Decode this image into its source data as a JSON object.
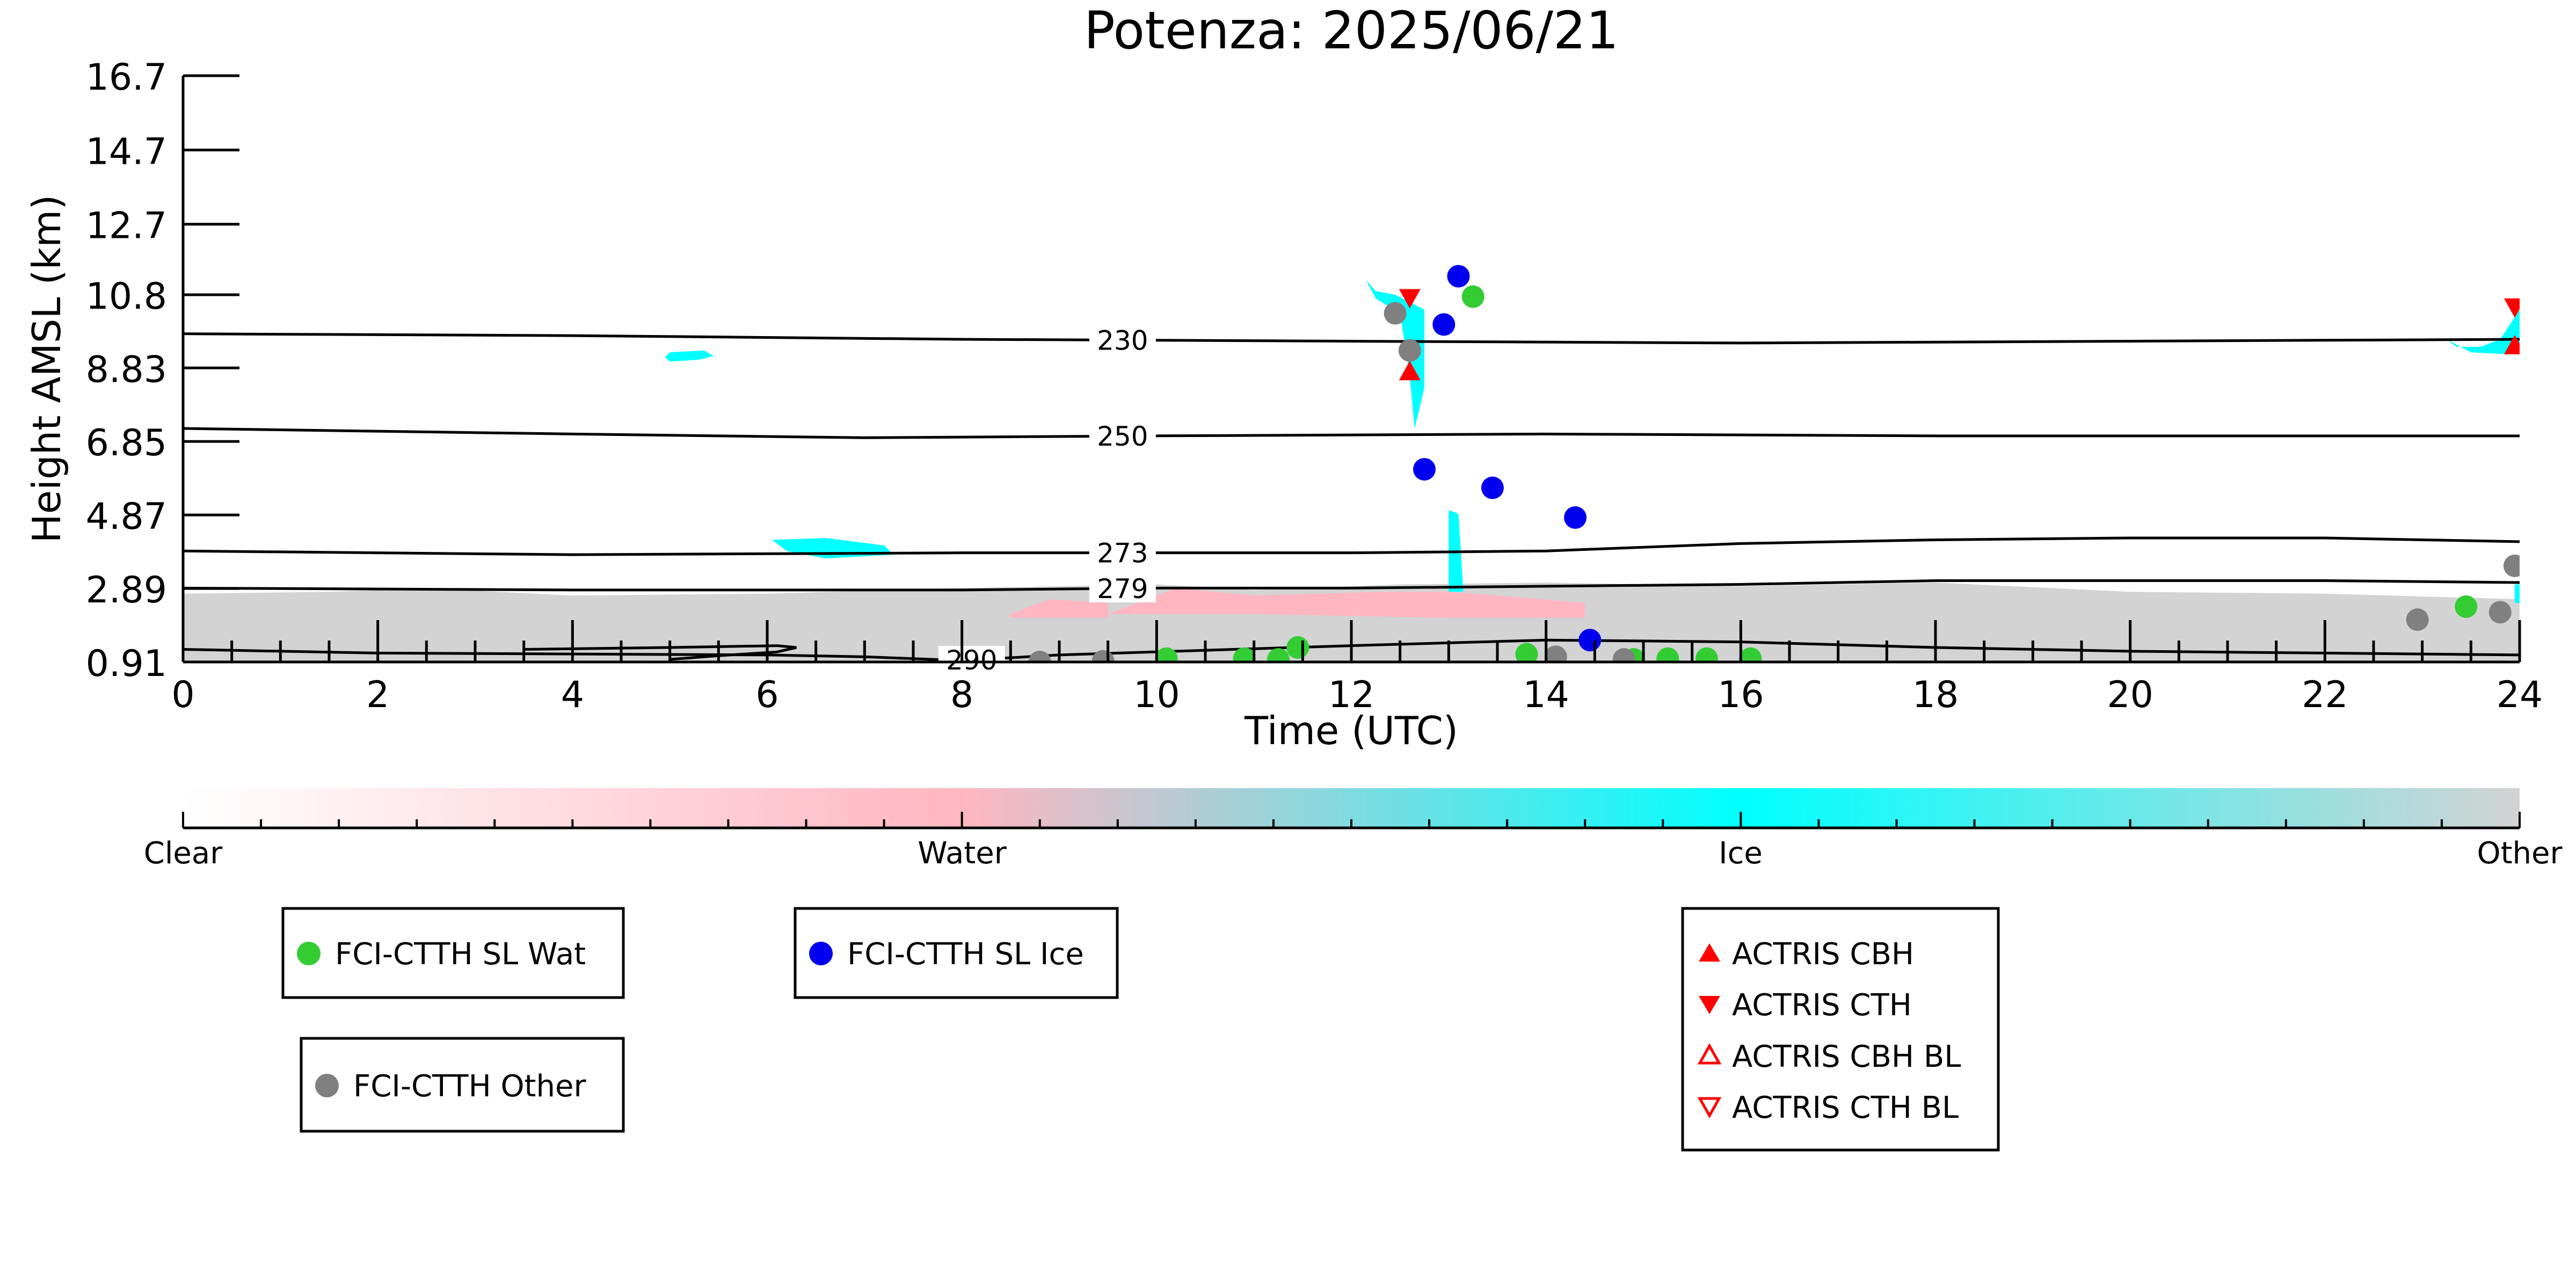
{
  "chart_data": {
    "type": "scatter",
    "title": "Potenza: 2025/06/21",
    "xlabel": "Time (UTC)",
    "ylabel": "Height AMSL (km)",
    "xlim": [
      0,
      24
    ],
    "ylim": [
      0.91,
      16.7
    ],
    "x_ticks": [
      0,
      2,
      4,
      6,
      8,
      10,
      12,
      14,
      16,
      18,
      20,
      22,
      24
    ],
    "x_tick_labels": [
      "0",
      "2",
      "4",
      "6",
      "8",
      "10",
      "12",
      "14",
      "16",
      "18",
      "20",
      "22",
      "24"
    ],
    "y_ticks": [
      0.91,
      2.89,
      4.87,
      6.85,
      8.83,
      10.8,
      12.7,
      14.7,
      16.7
    ],
    "y_tick_labels": [
      "0.91",
      "2.89",
      "4.87",
      "6.85",
      "8.83",
      "10.8",
      "12.7",
      "14.7",
      "16.7"
    ],
    "grid": false,
    "colors": {
      "clear": "#ffffff",
      "water": "#ffb6c1",
      "ice": "#00ffff",
      "other": "#d3d3d3",
      "wat_marker": "#33cc33",
      "ice_marker": "#0000ee",
      "other_marker": "#808080",
      "actris": "#ff0000",
      "contour": "#000000"
    },
    "colorbar": {
      "labels": [
        "Clear",
        "Water",
        "Ice",
        "Other"
      ]
    },
    "temperature_contours": [
      {
        "label": "230",
        "label_x": 9.65,
        "points": [
          [
            0,
            9.75
          ],
          [
            4,
            9.7
          ],
          [
            8,
            9.6
          ],
          [
            12,
            9.55
          ],
          [
            16,
            9.5
          ],
          [
            20,
            9.55
          ],
          [
            24,
            9.6
          ]
        ]
      },
      {
        "label": "250",
        "label_x": 9.65,
        "points": [
          [
            0,
            7.2
          ],
          [
            4,
            7.05
          ],
          [
            7,
            6.95
          ],
          [
            10,
            7.0
          ],
          [
            14,
            7.05
          ],
          [
            18,
            7.0
          ],
          [
            24,
            7.0
          ]
        ]
      },
      {
        "label": "273",
        "label_x": 9.65,
        "points": [
          [
            0,
            3.9
          ],
          [
            4,
            3.8
          ],
          [
            8,
            3.85
          ],
          [
            12,
            3.85
          ],
          [
            14,
            3.9
          ],
          [
            16,
            4.1
          ],
          [
            18,
            4.2
          ],
          [
            20,
            4.25
          ],
          [
            22,
            4.25
          ],
          [
            24,
            4.15
          ]
        ]
      },
      {
        "label": "279",
        "label_x": 9.65,
        "points": [
          [
            0,
            2.9
          ],
          [
            4,
            2.85
          ],
          [
            8,
            2.85
          ],
          [
            10,
            2.9
          ],
          [
            12,
            2.9
          ],
          [
            16,
            3.0
          ],
          [
            18,
            3.1
          ],
          [
            20,
            3.1
          ],
          [
            22,
            3.1
          ],
          [
            24,
            3.05
          ]
        ]
      },
      {
        "label": "290",
        "label_x": 8.1,
        "points": [
          [
            0,
            1.25
          ],
          [
            2,
            1.15
          ],
          [
            6,
            1.1
          ],
          [
            7,
            1.05
          ],
          [
            8,
            0.95
          ],
          [
            9,
            1.1
          ],
          [
            12,
            1.35
          ],
          [
            14,
            1.5
          ],
          [
            16,
            1.45
          ],
          [
            18,
            1.3
          ],
          [
            20,
            1.2
          ],
          [
            24,
            1.1
          ]
        ]
      },
      {
        "label": "",
        "label_x": null,
        "points": [
          [
            5,
            0.98
          ],
          [
            5.5,
            1.08
          ],
          [
            6.1,
            1.18
          ],
          [
            6.3,
            1.3
          ],
          [
            6.1,
            1.35
          ],
          [
            5.0,
            1.3
          ],
          [
            3.5,
            1.25
          ]
        ]
      }
    ],
    "series": [
      {
        "name": "FCI-CTTH SL Wat",
        "marker": "circle",
        "color": "#33cc33",
        "points": [
          [
            10.1,
            1.0
          ],
          [
            10.9,
            1.0
          ],
          [
            11.25,
            0.98
          ],
          [
            11.45,
            1.3
          ],
          [
            13.25,
            10.75
          ],
          [
            13.8,
            1.12
          ],
          [
            14.9,
            0.98
          ],
          [
            15.25,
            1.0
          ],
          [
            15.65,
            1.0
          ],
          [
            16.1,
            1.0
          ],
          [
            23.45,
            2.4
          ]
        ]
      },
      {
        "name": "FCI-CTTH SL Ice",
        "marker": "circle",
        "color": "#0000ee",
        "points": [
          [
            12.75,
            6.1
          ],
          [
            12.95,
            10.0
          ],
          [
            13.1,
            11.3
          ],
          [
            13.45,
            5.6
          ],
          [
            14.3,
            4.8
          ],
          [
            14.45,
            1.5
          ]
        ]
      },
      {
        "name": "FCI-CTTH Other",
        "marker": "circle",
        "color": "#808080",
        "points": [
          [
            8.8,
            0.91
          ],
          [
            9.45,
            0.93
          ],
          [
            12.45,
            10.3
          ],
          [
            12.6,
            9.3
          ],
          [
            14.1,
            1.05
          ],
          [
            14.8,
            0.98
          ],
          [
            22.95,
            2.05
          ],
          [
            23.8,
            2.25
          ],
          [
            23.95,
            3.5
          ]
        ]
      },
      {
        "name": "ACTRIS CBH",
        "marker": "triangle-up",
        "color": "#ff0000",
        "points": [
          [
            12.6,
            8.7
          ],
          [
            23.95,
            9.4
          ]
        ]
      },
      {
        "name": "ACTRIS CTH",
        "marker": "triangle-down",
        "color": "#ff0000",
        "points": [
          [
            12.6,
            10.75
          ],
          [
            23.95,
            10.5
          ]
        ]
      },
      {
        "name": "ACTRIS CBH BL",
        "marker": "triangle-up-open",
        "color": "#ff0000",
        "points": []
      },
      {
        "name": "ACTRIS CTH BL",
        "marker": "triangle-down-open",
        "color": "#ff0000",
        "points": []
      }
    ],
    "cloud_regions": [
      {
        "class": "ice",
        "polygon": [
          [
            5.0,
            9.25
          ],
          [
            5.35,
            9.3
          ],
          [
            5.45,
            9.15
          ],
          [
            5.3,
            9.05
          ],
          [
            5.0,
            9.0
          ],
          [
            4.95,
            9.12
          ]
        ]
      },
      {
        "class": "ice",
        "polygon": [
          [
            6.05,
            4.2
          ],
          [
            6.6,
            4.25
          ],
          [
            7.2,
            4.05
          ],
          [
            7.3,
            3.8
          ],
          [
            6.6,
            3.7
          ],
          [
            6.2,
            3.9
          ]
        ]
      },
      {
        "class": "ice",
        "polygon": [
          [
            12.15,
            11.2
          ],
          [
            12.25,
            10.9
          ],
          [
            12.45,
            10.8
          ],
          [
            12.6,
            10.6
          ],
          [
            12.75,
            10.4
          ],
          [
            12.75,
            8.3
          ],
          [
            12.65,
            7.2
          ],
          [
            12.6,
            8.6
          ],
          [
            12.5,
            10.3
          ],
          [
            12.25,
            10.7
          ]
        ]
      },
      {
        "class": "ice",
        "polygon": [
          [
            13.0,
            5.0
          ],
          [
            13.1,
            4.9
          ],
          [
            13.15,
            2.8
          ],
          [
            13.0,
            2.8
          ]
        ]
      },
      {
        "class": "ice",
        "polygon": [
          [
            23.25,
            9.6
          ],
          [
            23.35,
            9.4
          ],
          [
            23.6,
            9.4
          ],
          [
            23.8,
            9.6
          ],
          [
            24.0,
            10.4
          ],
          [
            24.0,
            9.3
          ],
          [
            23.85,
            9.2
          ],
          [
            23.5,
            9.25
          ]
        ]
      },
      {
        "class": "ice",
        "polygon": [
          [
            23.95,
            3.0
          ],
          [
            24.0,
            3.0
          ],
          [
            24.0,
            2.5
          ],
          [
            23.95,
            2.5
          ]
        ]
      },
      {
        "class": "water",
        "polygon": [
          [
            9.5,
            2.2
          ],
          [
            10.2,
            2.9
          ],
          [
            11.0,
            2.7
          ],
          [
            12.3,
            2.8
          ],
          [
            13.0,
            2.8
          ],
          [
            13.5,
            2.7
          ],
          [
            14.4,
            2.5
          ],
          [
            14.4,
            2.1
          ],
          [
            13.0,
            2.1
          ],
          [
            11.0,
            2.2
          ]
        ]
      },
      {
        "class": "water",
        "polygon": [
          [
            8.5,
            2.2
          ],
          [
            8.9,
            2.6
          ],
          [
            9.5,
            2.5
          ],
          [
            9.5,
            2.1
          ],
          [
            8.5,
            2.1
          ]
        ]
      }
    ],
    "other_layer": {
      "points": [
        [
          0,
          2.75
        ],
        [
          1.5,
          2.8
        ],
        [
          2.5,
          2.9
        ],
        [
          4,
          2.7
        ],
        [
          6,
          2.75
        ],
        [
          8,
          2.9
        ],
        [
          10,
          3.0
        ],
        [
          11,
          2.85
        ],
        [
          12.5,
          3.0
        ],
        [
          14,
          3.05
        ],
        [
          16,
          2.95
        ],
        [
          18,
          3.05
        ],
        [
          20,
          2.8
        ],
        [
          22,
          2.75
        ],
        [
          24,
          2.6
        ]
      ]
    },
    "legend": {
      "placement": "below",
      "entries": [
        {
          "label": "FCI-CTTH SL Wat",
          "marker": "circle",
          "color": "#33cc33"
        },
        {
          "label": "FCI-CTTH SL Ice",
          "marker": "circle",
          "color": "#0000ee"
        },
        {
          "label": "FCI-CTTH Other",
          "marker": "circle",
          "color": "#808080"
        },
        {
          "label": "ACTRIS CBH",
          "marker": "triangle-up",
          "color": "#ff0000"
        },
        {
          "label": "ACTRIS CTH",
          "marker": "triangle-down",
          "color": "#ff0000"
        },
        {
          "label": "ACTRIS CBH BL",
          "marker": "triangle-up-open",
          "color": "#ff0000"
        },
        {
          "label": "ACTRIS CTH BL",
          "marker": "triangle-down-open",
          "color": "#ff0000"
        }
      ]
    }
  }
}
